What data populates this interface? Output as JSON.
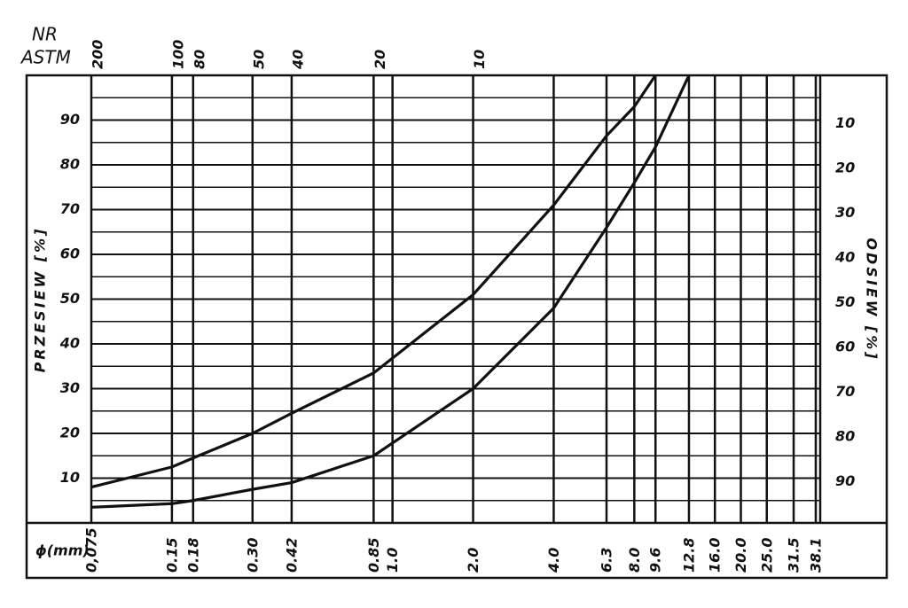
{
  "chart_data": {
    "type": "line",
    "x2label": [
      "NR",
      "ASTM"
    ],
    "xlabel": "ϕ(mm)",
    "ylabel": "PRZESIEW [%]",
    "y2label": "ODSIEW [%]",
    "xscale": "log",
    "xlim": [
      0.075,
      38.1
    ],
    "xticks": [
      {
        "value": 0.075,
        "label": "0,075"
      },
      0.15,
      0.18,
      {
        "value": 0.3,
        "label": "0.30"
      },
      0.42,
      0.85,
      {
        "value": 1,
        "label": "1.0"
      },
      {
        "value": 2,
        "label": "2.0"
      },
      {
        "value": 4,
        "label": "4.0"
      },
      6.3,
      {
        "value": 8,
        "label": "8.0"
      },
      9.6,
      12.8,
      {
        "value": 16,
        "label": "16.0"
      },
      {
        "value": 20,
        "label": "20.0"
      },
      {
        "value": 25,
        "label": "25.0"
      },
      31.5,
      38.1
    ],
    "x2ticks": [
      {
        "value": 0.075,
        "label": "200"
      },
      {
        "value": 0.15,
        "label": "100"
      },
      {
        "value": 0.18,
        "label": "80"
      },
      {
        "value": 0.3,
        "label": "50"
      },
      {
        "value": 0.42,
        "label": "40"
      },
      {
        "value": 0.85,
        "label": "20"
      },
      {
        "value": 2,
        "label": "10"
      }
    ],
    "ylim": [
      0,
      100
    ],
    "yticks": [
      10,
      20,
      30,
      40,
      50,
      60,
      70,
      80,
      90
    ],
    "y2lim": [
      100,
      0
    ],
    "y2ticks": [
      10,
      20,
      30,
      40,
      50,
      60,
      70,
      80,
      90
    ],
    "grid": true,
    "x": [
      0.075,
      0.15,
      0.18,
      0.3,
      0.42,
      0.85,
      2,
      4,
      6.3,
      8,
      9.6,
      12.8
    ],
    "series": [
      {
        "color": "#111111",
        "values": [
          8,
          12.5,
          14.5,
          20,
          24.5,
          33.5,
          51,
          71,
          86.5,
          93,
          100,
          null
        ]
      },
      {
        "color": "#111111",
        "values": [
          3.5,
          4.3,
          5,
          7.5,
          9,
          15,
          30,
          48,
          66,
          76,
          84,
          100
        ]
      }
    ]
  }
}
